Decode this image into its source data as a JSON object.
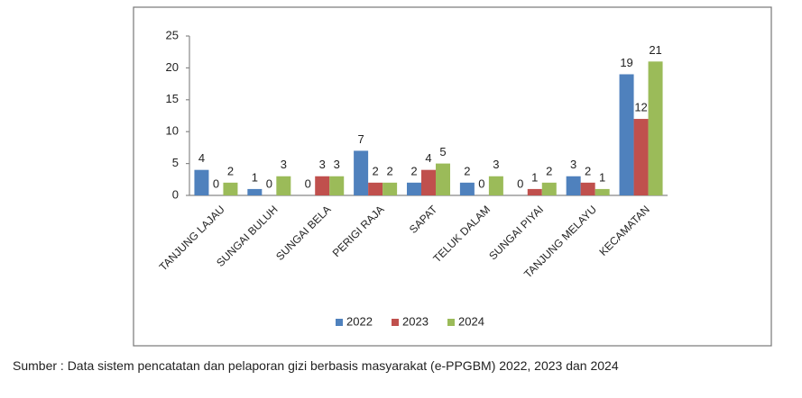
{
  "chart_data": {
    "type": "bar",
    "categories": [
      "TANJUNG LAJAU",
      "SUNGAI BULUH",
      "SUNGAI BELA",
      "PERIGI RAJA",
      "SAPAT",
      "TELUK DALAM",
      "SUNGAI PIYAI",
      "TANJUNG MELAYU",
      "KECAMATAN"
    ],
    "series": [
      {
        "name": "2022",
        "color": "#4f81bd",
        "values": [
          4,
          1,
          0,
          7,
          2,
          2,
          0,
          3,
          19
        ]
      },
      {
        "name": "2023",
        "color": "#c0504d",
        "values": [
          0,
          0,
          3,
          2,
          4,
          0,
          1,
          2,
          12
        ]
      },
      {
        "name": "2024",
        "color": "#9bbb59",
        "values": [
          2,
          3,
          3,
          2,
          5,
          3,
          2,
          1,
          21
        ]
      }
    ],
    "ylim": [
      0,
      25
    ],
    "yticks": [
      0,
      5,
      10,
      15,
      20,
      25
    ],
    "grid": false,
    "legend": "bottom",
    "caption": "Sumber : Data sistem pencatatan dan pelaporan gizi berbasis masyarakat (e-PPGBM) 2022, 2023 dan 2024"
  }
}
